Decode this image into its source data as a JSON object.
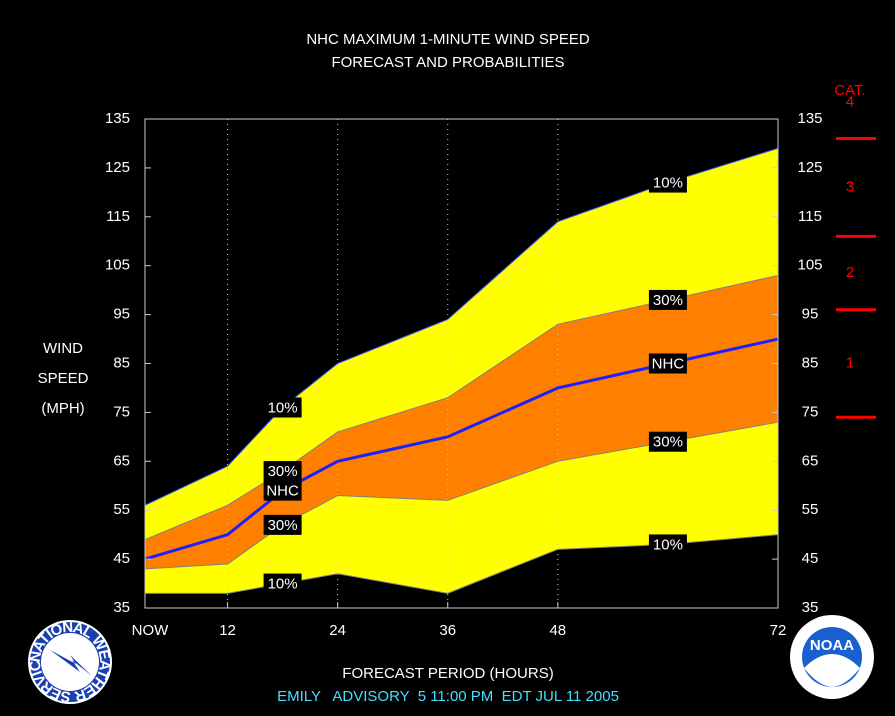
{
  "chart_data": {
    "type": "band",
    "title": "NHC MAXIMUM 1-MINUTE WIND SPEED",
    "subtitle": "FORECAST AND PROBABILITIES",
    "y_label": [
      "WIND",
      "SPEED",
      "(MPH)"
    ],
    "x_label": "FORECAST PERIOD (HOURS)",
    "footer": "EMILY   ADVISORY  5 11:00 PM  EDT JUL 11 2005",
    "x": [
      3,
      12,
      18,
      24,
      36,
      48,
      60,
      72
    ],
    "xlim": [
      3,
      72
    ],
    "xticks": [
      {
        "value": 3,
        "label": "NOW"
      },
      12,
      24,
      36,
      48,
      72
    ],
    "ylim": [
      35,
      135
    ],
    "yticks": [
      35,
      45,
      55,
      65,
      75,
      85,
      95,
      105,
      115,
      125,
      135
    ],
    "grid": "x-dotted",
    "label_at": [
      18,
      60
    ],
    "series": [
      {
        "name": "10%",
        "color": "#4060ff",
        "fill": "#ffff00",
        "fill_to": 4,
        "values": [
          56,
          64,
          76,
          85,
          94,
          114,
          122,
          129
        ]
      },
      {
        "name": "30%",
        "color": "#808080",
        "fill": "#ff8000",
        "fill_to": 3,
        "values": [
          49,
          56,
          63,
          71,
          78,
          93,
          98,
          103
        ]
      },
      {
        "name": "NHC",
        "color": "#1e1eff",
        "values": [
          45,
          50,
          59,
          65,
          70,
          80,
          85,
          90
        ]
      },
      {
        "name": "30%",
        "color": "#808080",
        "values": [
          43,
          44,
          52,
          58,
          57,
          65,
          69,
          73
        ]
      },
      {
        "name": "10%",
        "color": "#808080",
        "values": [
          38,
          38,
          40,
          42,
          38,
          47,
          48,
          50
        ]
      }
    ],
    "category_scale": {
      "title": "CAT.",
      "color": "#ff0000",
      "thresholds": [
        74,
        96,
        111,
        131
      ],
      "labels": [
        "1",
        "2",
        "3",
        "4"
      ]
    },
    "logos": {
      "left": "NATIONAL WEATHER SERVICE",
      "right": "NOAA"
    }
  }
}
